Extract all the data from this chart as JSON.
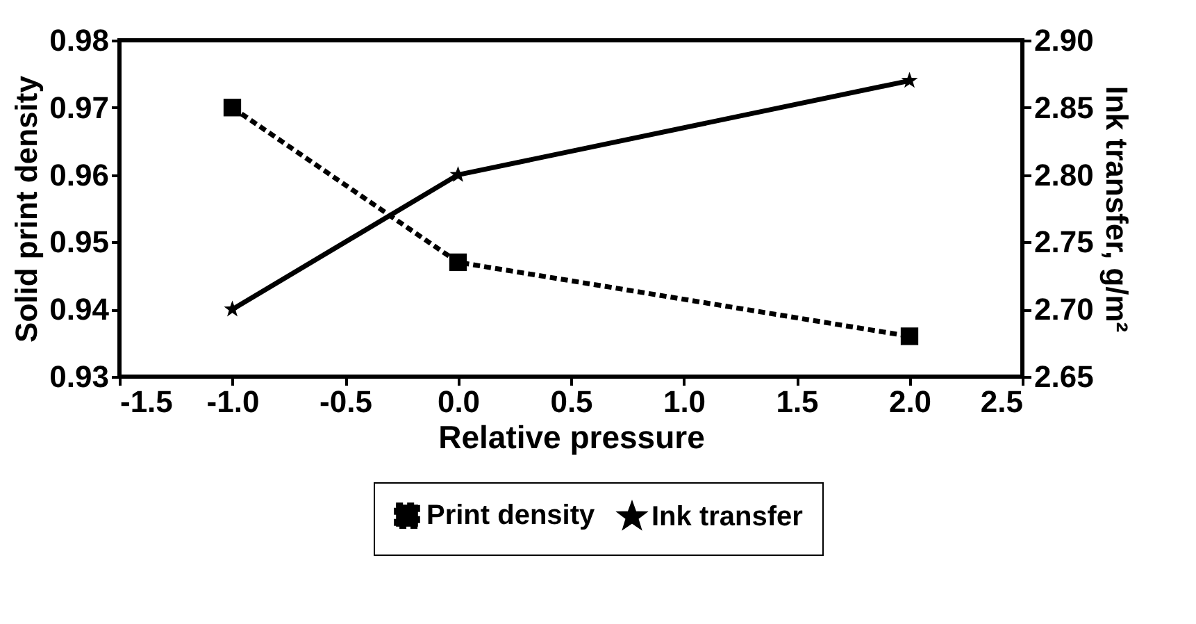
{
  "chart_data": {
    "type": "line",
    "xlabel": "Relative pressure",
    "ylabel": "Solid print density",
    "y2label": "Ink transfer, g/m²",
    "x": [
      -1,
      0,
      2
    ],
    "series": [
      {
        "name": "Print density",
        "color": "#000000",
        "values": [
          0.97,
          0.947,
          0.936
        ],
        "marker": "square",
        "line_style": "dashed"
      },
      {
        "name": "Ink transfer",
        "color": "#000000",
        "values": [
          2.7,
          2.8,
          2.87
        ],
        "axis": "y2",
        "marker": "star",
        "line_style": "solid"
      }
    ],
    "xlim": [
      -1.5,
      2.5
    ],
    "xticks": [
      -1.5,
      {
        "value": -1,
        "label": "-1.0"
      },
      -0.5,
      {
        "value": 0,
        "label": "0.0"
      },
      0.5,
      {
        "value": 1,
        "label": "1.0"
      },
      1.5,
      {
        "value": 2,
        "label": "2.0"
      },
      2.5
    ],
    "ylim": [
      0.93,
      0.98
    ],
    "yticks": [
      0.93,
      0.94,
      0.95,
      0.96,
      0.97,
      0.98
    ],
    "y2lim": [
      2.65,
      2.9
    ],
    "y2ticks": [
      {
        "value": 2.65,
        "label": "2.65"
      },
      {
        "value": 2.7,
        "label": "2.70"
      },
      2.75,
      {
        "value": 2.8,
        "label": "2.80"
      },
      2.85,
      {
        "value": 2.9,
        "label": "2.90"
      }
    ],
    "legend": "bottom"
  }
}
